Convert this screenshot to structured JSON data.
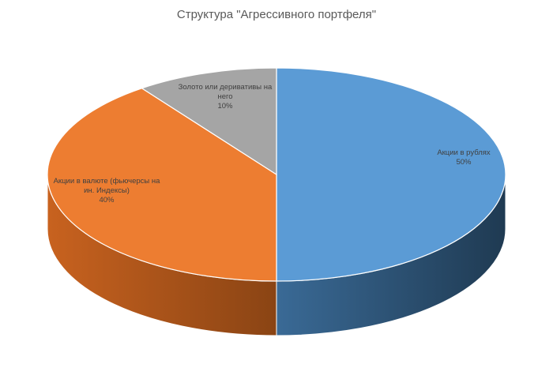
{
  "chart_data": {
    "type": "pie",
    "title": "Структура \"Агрессивного портфеля\"",
    "slices": [
      {
        "label_lines": [
          "Акции в рублях"
        ],
        "label": "Акции в рублях",
        "value": 50,
        "percent_text": "50%",
        "color": "#5b9bd5",
        "side_color": "#2c4f6e"
      },
      {
        "label_lines": [
          "Акции в валюте (фьючерсы на",
          "ин. Индексы)"
        ],
        "label": "Акции в валюте (фьючерсы на ин. Индексы)",
        "value": 40,
        "percent_text": "40%",
        "color": "#ed7d31",
        "side_color": "#a0521c"
      },
      {
        "label_lines": [
          "Золото или деривативы на",
          "него"
        ],
        "label": "Золото или деривативы на него",
        "value": 10,
        "percent_text": "10%",
        "color": "#a5a5a5",
        "side_color": "#6e6e6e"
      }
    ],
    "legend": "none",
    "style": "3d"
  }
}
